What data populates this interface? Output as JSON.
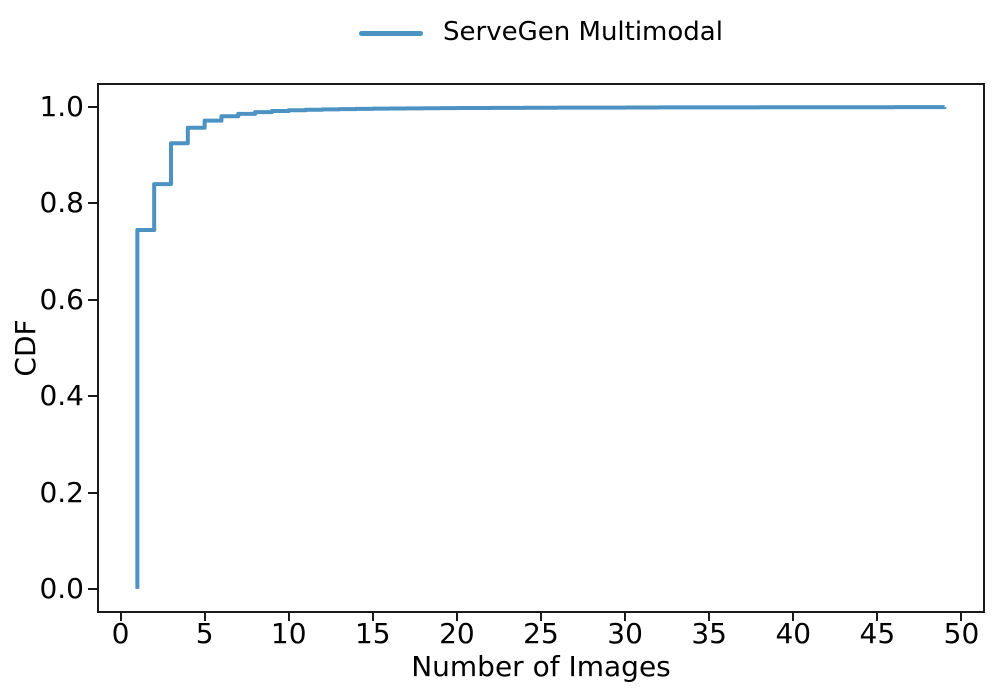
{
  "figure": {
    "background": "#ffffff",
    "spine_color": "#1a1a1a",
    "text_color": "#000000"
  },
  "legend": {
    "position": "top-center",
    "frame": false,
    "items": [
      {
        "label": "ServeGen Multimodal",
        "color": "#4C92C3"
      }
    ]
  },
  "chart_data": {
    "type": "line",
    "style": "step-cdf",
    "title": "",
    "xlabel": "Number of Images",
    "ylabel": "CDF",
    "grid": false,
    "legend_position": "top-center",
    "xlim": [
      -1.4,
      51.4
    ],
    "ylim": [
      -0.05,
      1.05
    ],
    "x_ticks": [
      0,
      5,
      10,
      15,
      20,
      25,
      30,
      35,
      40,
      45,
      50
    ],
    "x_tick_labels": [
      "0",
      "5",
      "10",
      "15",
      "20",
      "25",
      "30",
      "35",
      "40",
      "45",
      "50"
    ],
    "y_ticks": [
      0.0,
      0.2,
      0.4,
      0.6,
      0.8,
      1.0
    ],
    "y_tick_labels": [
      "0.0",
      "0.2",
      "0.4",
      "0.6",
      "0.8",
      "1.0"
    ],
    "series": [
      {
        "name": "ServeGen Multimodal",
        "color": "#4C92C3",
        "line_width": 4,
        "start": [
          1,
          0.0
        ],
        "points": [
          [
            1,
            0.745
          ],
          [
            2,
            0.84
          ],
          [
            3,
            0.925
          ],
          [
            4,
            0.957
          ],
          [
            5,
            0.972
          ],
          [
            6,
            0.981
          ],
          [
            7,
            0.986
          ],
          [
            8,
            0.9895
          ],
          [
            9,
            0.992
          ],
          [
            10,
            0.9935
          ],
          [
            11,
            0.9945
          ],
          [
            12,
            0.9953
          ],
          [
            13,
            0.9959
          ],
          [
            14,
            0.9964
          ],
          [
            15,
            0.9968
          ],
          [
            16,
            0.9971
          ],
          [
            17,
            0.9974
          ],
          [
            18,
            0.9977
          ],
          [
            19,
            0.9979
          ],
          [
            20,
            0.9981
          ],
          [
            22,
            0.9984
          ],
          [
            24,
            0.9986
          ],
          [
            26,
            0.9988
          ],
          [
            28,
            0.999
          ],
          [
            30,
            0.9991
          ],
          [
            32,
            0.9993
          ],
          [
            34,
            0.9994
          ],
          [
            36,
            0.9995
          ],
          [
            38,
            0.9996
          ],
          [
            40,
            0.9997
          ],
          [
            42,
            0.9998
          ],
          [
            44,
            0.9998
          ],
          [
            46,
            0.9999
          ],
          [
            48,
            0.99995
          ],
          [
            49,
            1.0
          ]
        ]
      }
    ]
  }
}
